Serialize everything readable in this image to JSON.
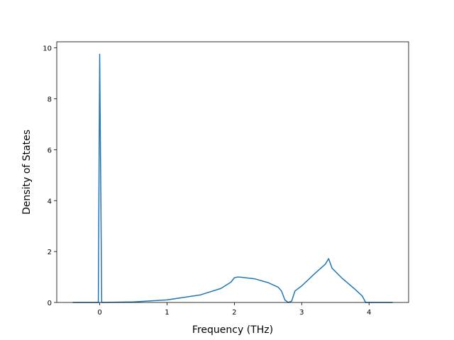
{
  "chart_data": {
    "type": "line",
    "xlabel": "Frequency (THz)",
    "ylabel": "Density of States",
    "x": [
      -0.4,
      -0.02,
      0,
      0.03,
      0.5,
      1.0,
      1.5,
      1.8,
      1.95,
      2.0,
      2.05,
      2.1,
      2.3,
      2.5,
      2.65,
      2.7,
      2.75,
      2.8,
      2.85,
      2.9,
      3.0,
      3.2,
      3.35,
      3.4,
      3.45,
      3.6,
      3.8,
      3.9,
      3.95,
      4.35
    ],
    "series": [
      {
        "color": "#1f77b4",
        "values": [
          0,
          0,
          9.75,
          0,
          0.02,
          0.1,
          0.3,
          0.55,
          0.8,
          0.97,
          1.0,
          0.99,
          0.93,
          0.78,
          0.6,
          0.45,
          0.1,
          0.0,
          0.05,
          0.45,
          0.65,
          1.15,
          1.5,
          1.72,
          1.35,
          0.95,
          0.5,
          0.25,
          0.0,
          0
        ]
      }
    ],
    "xlim": [
      -0.6375,
      4.5875
    ],
    "xticks": [
      0,
      1,
      2,
      3,
      4
    ],
    "ylim": [
      0,
      10.24
    ],
    "yticks": [
      0,
      2,
      4,
      6,
      8,
      10
    ]
  }
}
